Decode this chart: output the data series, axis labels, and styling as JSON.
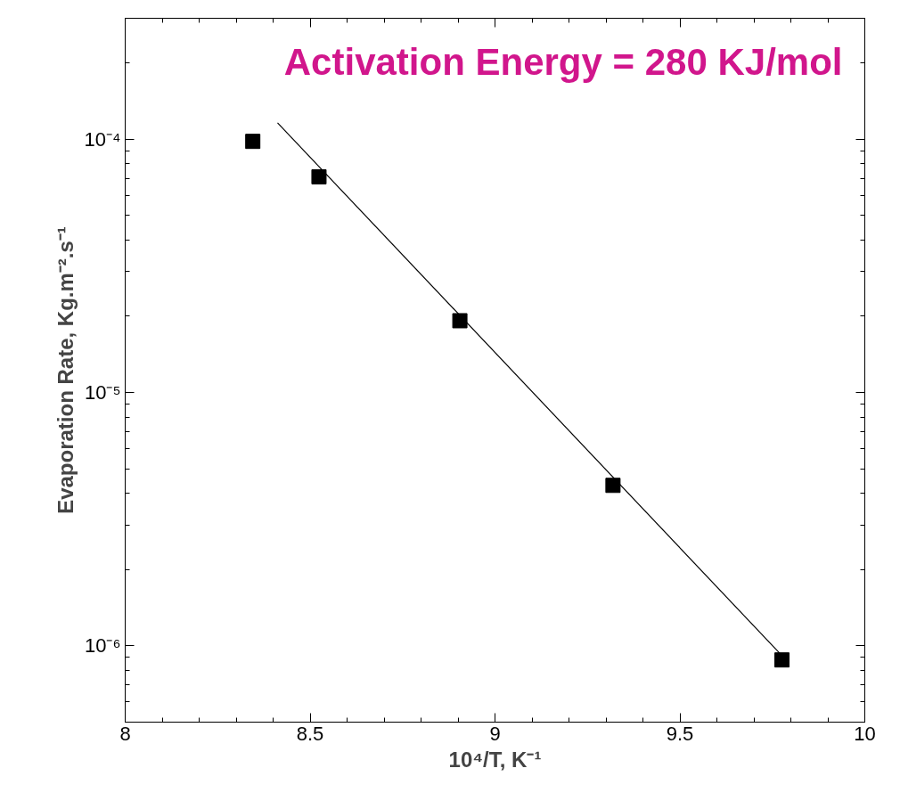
{
  "chart_data": {
    "type": "scatter",
    "xlabel": "10⁴/T, K⁻¹",
    "ylabel": "Evaporation Rate, Kg.m⁻².s⁻¹",
    "annotations": [
      "Activation Energy = 280 KJ/mol"
    ],
    "series": [
      {
        "color": "#000000",
        "marker": "square",
        "x": [
          8.345,
          8.524,
          8.905,
          9.319,
          9.776
        ],
        "values": [
          9.8e-05,
          7.1e-05,
          1.92e-05,
          4.3e-06,
          8.8e-07
        ]
      },
      {
        "type": "line",
        "color": "#000000",
        "marker": "none",
        "line_style": "solid",
        "x": [
          8.412,
          9.776
        ],
        "values": [
          0.000116,
          9.15e-07
        ]
      }
    ],
    "log": "y",
    "grid": false,
    "xlim": [
      8,
      10
    ],
    "xticks": [
      8,
      8.5,
      9,
      9.5,
      10
    ],
    "ylim": [
      5e-07,
      0.0003
    ],
    "yticks": [
      {
        "value": 1e-06,
        "label": "10⁻⁶"
      },
      {
        "value": 1e-05,
        "label": "10⁻⁵"
      },
      {
        "value": 0.0001,
        "label": "10⁻⁴"
      }
    ]
  }
}
